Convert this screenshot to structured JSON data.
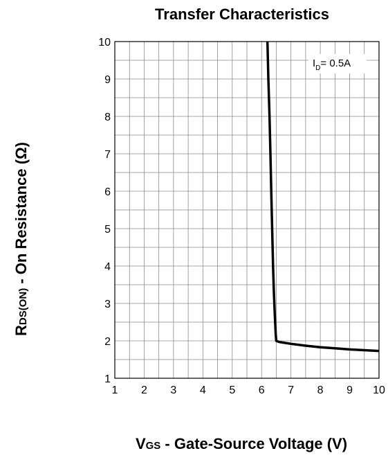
{
  "chart_data": {
    "type": "line",
    "title": "Transfer Characteristics",
    "xlabel": {
      "main": "V",
      "sub": "GS",
      "rest": " - Gate-Source Voltage (V)"
    },
    "ylabel": {
      "main": "R",
      "sub": "DS(ON)",
      "rest": " - On Resistance (Ω)"
    },
    "xlim": [
      1,
      10
    ],
    "ylim": [
      1,
      10
    ],
    "x_ticks": [
      1,
      2,
      3,
      4,
      5,
      6,
      7,
      8,
      9,
      10
    ],
    "y_ticks": [
      1,
      2,
      3,
      4,
      5,
      6,
      7,
      8,
      9,
      10
    ],
    "grid": true,
    "grid_minor_x": 2,
    "grid_minor_y": 2,
    "annotation": {
      "main": "I",
      "sub": "D",
      "rest": "= 0.5A",
      "position": "top-right"
    },
    "series": [
      {
        "color": "#000000",
        "x": [
          6.2,
          6.23,
          6.27,
          6.3,
          6.33,
          6.36,
          6.39,
          6.42,
          6.45,
          6.48,
          6.5,
          6.6,
          7.0,
          7.5,
          8.0,
          8.5,
          9.0,
          9.5,
          10.0
        ],
        "y": [
          10.0,
          9.0,
          8.0,
          7.0,
          6.0,
          5.0,
          4.0,
          3.3,
          2.7,
          2.2,
          2.0,
          1.97,
          1.92,
          1.87,
          1.83,
          1.8,
          1.77,
          1.75,
          1.73
        ]
      }
    ]
  }
}
